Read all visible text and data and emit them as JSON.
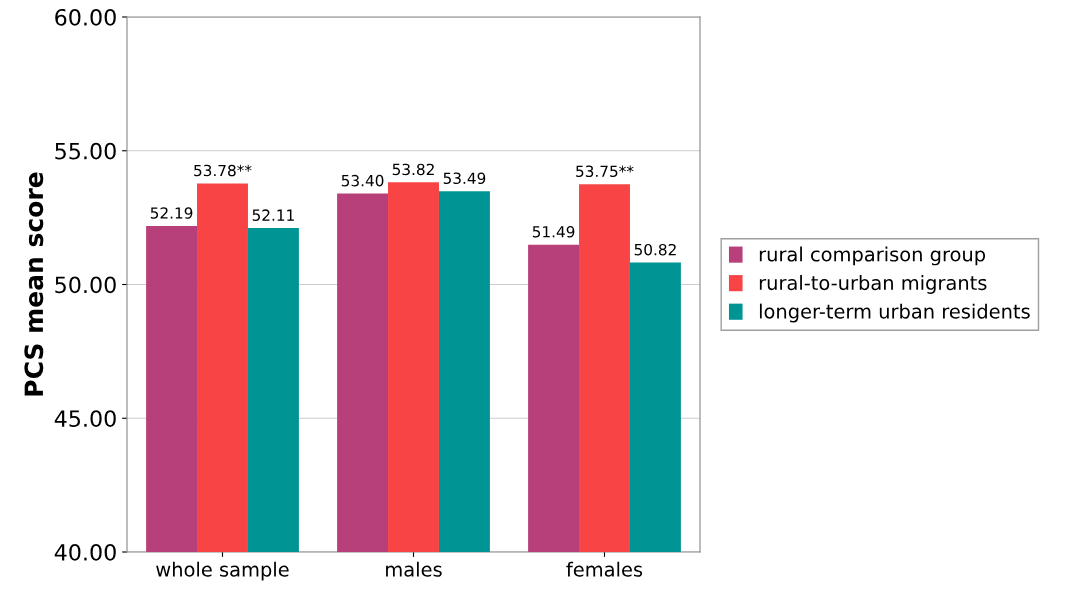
{
  "chart_data": {
    "type": "bar",
    "ylabel": "PCS mean score",
    "categories": [
      "whole sample",
      "males",
      "females"
    ],
    "series": [
      {
        "name": "rural comparison group",
        "color": "#b8407a",
        "values": [
          52.19,
          53.4,
          51.49
        ],
        "value_labels": [
          "52.19",
          "53.40",
          "51.49"
        ]
      },
      {
        "name": "rural-to-urban migrants",
        "color": "#f84444",
        "values": [
          53.78,
          53.82,
          53.75
        ],
        "value_labels": [
          "53.78**",
          "53.82",
          "53.75**"
        ]
      },
      {
        "name": "longer-term urban residents",
        "color": "#009494",
        "values": [
          52.11,
          53.49,
          50.82
        ],
        "value_labels": [
          "52.11",
          "53.49",
          "50.82"
        ]
      }
    ],
    "ylim": [
      40,
      60
    ],
    "yticks": [
      {
        "value": 40,
        "label": "40.00"
      },
      {
        "value": 45,
        "label": "45.00"
      },
      {
        "value": 50,
        "label": "50.00"
      },
      {
        "value": 55,
        "label": "55.00"
      },
      {
        "value": 60,
        "label": "60.00"
      }
    ],
    "grid": "y",
    "legend": "right"
  }
}
